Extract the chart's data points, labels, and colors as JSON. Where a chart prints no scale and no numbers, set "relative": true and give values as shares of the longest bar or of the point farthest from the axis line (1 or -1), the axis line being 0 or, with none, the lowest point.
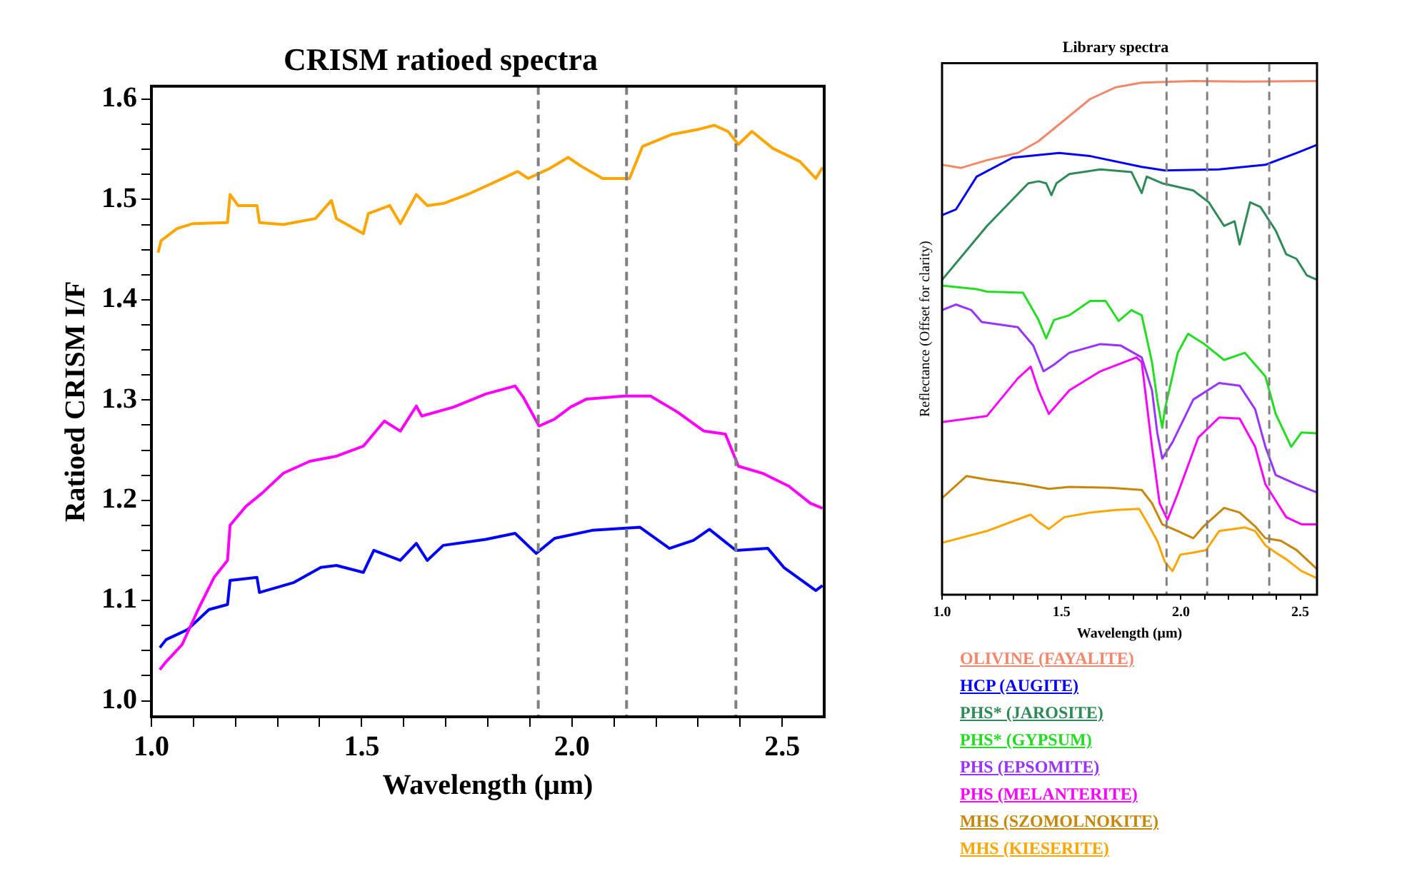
{
  "chart_data": [
    {
      "type": "line",
      "title": "CRISM ratioed spectra",
      "xlabel": "Wavelength (μm)",
      "ylabel": "Ratioed CRISM I/F",
      "xlim": [
        1.0,
        2.6
      ],
      "ylim": [
        0.984,
        1.613
      ],
      "xticks": [
        {
          "value": 1.0,
          "label": "1.0"
        },
        {
          "value": 1.1,
          "label": null
        },
        {
          "value": 1.2,
          "label": null
        },
        {
          "value": 1.3,
          "label": null
        },
        {
          "value": 1.4,
          "label": null
        },
        {
          "value": 1.5,
          "label": "1.5"
        },
        {
          "value": 1.6,
          "label": null
        },
        {
          "value": 1.7,
          "label": null
        },
        {
          "value": 1.8,
          "label": null
        },
        {
          "value": 1.9,
          "label": null
        },
        {
          "value": 2.0,
          "label": "2.0"
        },
        {
          "value": 2.1,
          "label": null
        },
        {
          "value": 2.2,
          "label": null
        },
        {
          "value": 2.3,
          "label": null
        },
        {
          "value": 2.4,
          "label": null
        },
        {
          "value": 2.5,
          "label": "2.5"
        }
      ],
      "yticks": [
        {
          "value": 1.0,
          "label": "1.0"
        },
        {
          "value": 1.025,
          "label": null
        },
        {
          "value": 1.05,
          "label": null
        },
        {
          "value": 1.075,
          "label": null
        },
        {
          "value": 1.1,
          "label": "1.1"
        },
        {
          "value": 1.125,
          "label": null
        },
        {
          "value": 1.15,
          "label": null
        },
        {
          "value": 1.175,
          "label": null
        },
        {
          "value": 1.2,
          "label": "1.2"
        },
        {
          "value": 1.225,
          "label": null
        },
        {
          "value": 1.25,
          "label": null
        },
        {
          "value": 1.275,
          "label": null
        },
        {
          "value": 1.3,
          "label": "1.3"
        },
        {
          "value": 1.325,
          "label": null
        },
        {
          "value": 1.35,
          "label": null
        },
        {
          "value": 1.375,
          "label": null
        },
        {
          "value": 1.4,
          "label": "1.4"
        },
        {
          "value": 1.425,
          "label": null
        },
        {
          "value": 1.45,
          "label": null
        },
        {
          "value": 1.475,
          "label": null
        },
        {
          "value": 1.5,
          "label": "1.5"
        },
        {
          "value": 1.525,
          "label": null
        },
        {
          "value": 1.55,
          "label": null
        },
        {
          "value": 1.575,
          "label": null
        },
        {
          "value": 1.6,
          "label": "1.6"
        }
      ],
      "ref_lines": [
        {
          "axis": "x",
          "value": 1.92,
          "label": null,
          "color": "#808080",
          "line_style": "dashed"
        },
        {
          "axis": "x",
          "value": 2.13,
          "label": null,
          "color": "#808080",
          "line_style": "dashed"
        },
        {
          "axis": "x",
          "value": 2.39,
          "label": null,
          "color": "#808080",
          "line_style": "dashed"
        }
      ],
      "marker": "none",
      "legend": false,
      "series": [
        {
          "color": "#ffa500",
          "x": [
            1.016,
            1.023,
            1.061,
            1.099,
            1.181,
            1.187,
            1.206,
            1.251,
            1.257,
            1.314,
            1.39,
            1.428,
            1.44,
            1.504,
            1.516,
            1.567,
            1.592,
            1.63,
            1.656,
            1.694,
            1.757,
            1.82,
            1.871,
            1.896,
            1.947,
            1.991,
            2.023,
            2.073,
            2.137,
            2.168,
            2.238,
            2.301,
            2.339,
            2.371,
            2.396,
            2.428,
            2.478,
            2.542,
            2.58,
            2.596
          ],
          "values": [
            1.447,
            1.459,
            1.471,
            1.476,
            1.477,
            1.505,
            1.494,
            1.494,
            1.477,
            1.475,
            1.481,
            1.499,
            1.481,
            1.466,
            1.486,
            1.494,
            1.476,
            1.505,
            1.494,
            1.496,
            1.506,
            1.518,
            1.528,
            1.521,
            1.531,
            1.542,
            1.533,
            1.521,
            1.521,
            1.553,
            1.565,
            1.57,
            1.574,
            1.568,
            1.555,
            1.568,
            1.551,
            1.538,
            1.521,
            1.532
          ]
        },
        {
          "color": "#ff00ff",
          "x": [
            1.02,
            1.035,
            1.073,
            1.111,
            1.149,
            1.181,
            1.187,
            1.225,
            1.263,
            1.314,
            1.377,
            1.44,
            1.504,
            1.554,
            1.592,
            1.63,
            1.643,
            1.719,
            1.795,
            1.865,
            1.884,
            1.922,
            1.959,
            1.997,
            2.035,
            2.124,
            2.187,
            2.251,
            2.314,
            2.365,
            2.396,
            2.453,
            2.516,
            2.567,
            2.596
          ],
          "values": [
            1.031,
            1.039,
            1.056,
            1.091,
            1.123,
            1.14,
            1.175,
            1.194,
            1.207,
            1.227,
            1.239,
            1.244,
            1.254,
            1.279,
            1.269,
            1.294,
            1.284,
            1.293,
            1.306,
            1.314,
            1.303,
            1.274,
            1.281,
            1.293,
            1.301,
            1.304,
            1.304,
            1.288,
            1.269,
            1.266,
            1.234,
            1.227,
            1.214,
            1.197,
            1.192
          ]
        },
        {
          "color": "#0000ff",
          "x": [
            1.02,
            1.035,
            1.086,
            1.137,
            1.181,
            1.187,
            1.251,
            1.257,
            1.339,
            1.403,
            1.44,
            1.504,
            1.529,
            1.592,
            1.63,
            1.656,
            1.694,
            1.795,
            1.865,
            1.915,
            1.959,
            2.048,
            2.162,
            2.232,
            2.289,
            2.327,
            2.39,
            2.466,
            2.504,
            2.58,
            2.596
          ],
          "values": [
            1.053,
            1.061,
            1.071,
            1.091,
            1.096,
            1.12,
            1.123,
            1.108,
            1.118,
            1.133,
            1.135,
            1.128,
            1.15,
            1.14,
            1.157,
            1.14,
            1.155,
            1.161,
            1.167,
            1.147,
            1.162,
            1.17,
            1.173,
            1.152,
            1.16,
            1.171,
            1.15,
            1.152,
            1.133,
            1.11,
            1.115
          ]
        }
      ]
    },
    {
      "type": "line",
      "title": "Library spectra",
      "xlabel": "Wavelength (μm)",
      "ylabel": "Reflectance (Offset for clarity)",
      "relative": true,
      "tick_labels": "x",
      "xlim": [
        1.0,
        2.57
      ],
      "xticks": [
        {
          "value": 1.0,
          "label": "1.0"
        },
        {
          "value": 1.1,
          "label": null
        },
        {
          "value": 1.2,
          "label": null
        },
        {
          "value": 1.3,
          "label": null
        },
        {
          "value": 1.4,
          "label": null
        },
        {
          "value": 1.5,
          "label": "1.5"
        },
        {
          "value": 1.6,
          "label": null
        },
        {
          "value": 1.7,
          "label": null
        },
        {
          "value": 1.8,
          "label": null
        },
        {
          "value": 1.9,
          "label": null
        },
        {
          "value": 2.0,
          "label": "2.0"
        },
        {
          "value": 2.1,
          "label": null
        },
        {
          "value": 2.2,
          "label": null
        },
        {
          "value": 2.3,
          "label": null
        },
        {
          "value": 2.4,
          "label": null
        },
        {
          "value": 2.5,
          "label": "2.5"
        }
      ],
      "ref_lines": [
        {
          "axis": "x",
          "value": 1.94,
          "label": null,
          "color": "#808080",
          "line_style": "dashed"
        },
        {
          "axis": "x",
          "value": 2.11,
          "label": null,
          "color": "#808080",
          "line_style": "dashed"
        },
        {
          "axis": "x",
          "value": 2.37,
          "label": null,
          "color": "#808080",
          "line_style": "dashed"
        }
      ],
      "marker": "none",
      "legend": "bottom",
      "series": [
        {
          "name": "OLIVINE (FAYALITE)",
          "color": "#f4876a",
          "x": [
            1.0,
            1.08,
            1.188,
            1.317,
            1.404,
            1.512,
            1.62,
            1.728,
            1.836,
            2.052,
            2.268,
            2.57
          ],
          "values": [
            0.837,
            0.831,
            0.846,
            0.86,
            0.883,
            0.924,
            0.965,
            0.988,
            0.997,
            1,
            0.999,
            1
          ]
        },
        {
          "name": "HCP (AUGITE)",
          "color": "#0000ff",
          "x": [
            1.0,
            1.058,
            1.145,
            1.296,
            1.49,
            1.62,
            1.836,
            1.933,
            2.16,
            2.354,
            2.484,
            2.57
          ],
          "values": [
            0.739,
            0.75,
            0.814,
            0.851,
            0.86,
            0.854,
            0.833,
            0.826,
            0.828,
            0.837,
            0.86,
            0.876
          ]
        },
        {
          "name": "PHS* (JAROSITE)",
          "color": "#2e8b57",
          "x": [
            1.0,
            1.188,
            1.361,
            1.404,
            1.436,
            1.458,
            1.479,
            1.533,
            1.663,
            1.793,
            1.836,
            1.857,
            1.922,
            2.052,
            2.117,
            2.181,
            2.225,
            2.246,
            2.29,
            2.333,
            2.397,
            2.441,
            2.484,
            2.527,
            2.57
          ],
          "values": [
            0.613,
            0.718,
            0.801,
            0.805,
            0.801,
            0.778,
            0.801,
            0.819,
            0.828,
            0.823,
            0.782,
            0.814,
            0.801,
            0.787,
            0.764,
            0.718,
            0.727,
            0.682,
            0.764,
            0.755,
            0.709,
            0.663,
            0.654,
            0.622,
            0.613
          ]
        },
        {
          "name": "PHS* (GYPSUM)",
          "color": "#22dd22",
          "x": [
            1.0,
            1.145,
            1.188,
            1.339,
            1.404,
            1.436,
            1.469,
            1.533,
            1.62,
            1.685,
            1.739,
            1.793,
            1.836,
            1.879,
            1.901,
            1.922,
            1.933,
            1.987,
            2.03,
            2.095,
            2.181,
            2.268,
            2.354,
            2.397,
            2.462,
            2.505,
            2.57
          ],
          "values": [
            0.602,
            0.595,
            0.59,
            0.588,
            0.535,
            0.499,
            0.535,
            0.544,
            0.572,
            0.572,
            0.533,
            0.554,
            0.544,
            0.453,
            0.38,
            0.325,
            0.361,
            0.471,
            0.508,
            0.489,
            0.457,
            0.471,
            0.425,
            0.352,
            0.288,
            0.316,
            0.314
          ]
        },
        {
          "name": "PHS (EPSOMITE)",
          "color": "#9933ff",
          "x": [
            1.0,
            1.058,
            1.123,
            1.166,
            1.317,
            1.382,
            1.425,
            1.469,
            1.533,
            1.663,
            1.749,
            1.836,
            1.879,
            1.901,
            1.922,
            1.965,
            2.052,
            2.16,
            2.246,
            2.311,
            2.354,
            2.397,
            2.484,
            2.57
          ],
          "values": [
            0.554,
            0.565,
            0.554,
            0.531,
            0.521,
            0.485,
            0.435,
            0.448,
            0.471,
            0.488,
            0.485,
            0.462,
            0.398,
            0.316,
            0.265,
            0.297,
            0.38,
            0.412,
            0.407,
            0.361,
            0.288,
            0.233,
            0.215,
            0.199
          ]
        },
        {
          "name": "PHS (MELANTERITE)",
          "color": "#ff00ff",
          "x": [
            1.0,
            1.188,
            1.317,
            1.371,
            1.404,
            1.447,
            1.533,
            1.663,
            1.814,
            1.836,
            1.879,
            1.911,
            1.944,
            1.987,
            2.073,
            2.16,
            2.246,
            2.311,
            2.354,
            2.441,
            2.505,
            2.57
          ],
          "values": [
            0.336,
            0.348,
            0.421,
            0.444,
            0.398,
            0.352,
            0.398,
            0.435,
            0.462,
            0.453,
            0.288,
            0.178,
            0.146,
            0.197,
            0.306,
            0.345,
            0.343,
            0.288,
            0.215,
            0.151,
            0.137,
            0.137
          ]
        },
        {
          "name": "MHS (SZOMOLNOKITE)",
          "color": "#c8860a",
          "x": [
            1.0,
            1.102,
            1.188,
            1.339,
            1.404,
            1.447,
            1.533,
            1.706,
            1.836,
            1.879,
            1.922,
            1.987,
            2.052,
            2.095,
            2.181,
            2.246,
            2.311,
            2.354,
            2.419,
            2.484,
            2.57
          ],
          "values": [
            0.188,
            0.231,
            0.224,
            0.215,
            0.21,
            0.206,
            0.21,
            0.208,
            0.204,
            0.178,
            0.137,
            0.124,
            0.11,
            0.133,
            0.169,
            0.16,
            0.133,
            0.11,
            0.105,
            0.087,
            0.05
          ]
        },
        {
          "name": "MHS (KIESERITE)",
          "color": "#ffa500",
          "x": [
            1.0,
            1.188,
            1.371,
            1.404,
            1.447,
            1.512,
            1.62,
            1.728,
            1.825,
            1.857,
            1.901,
            1.933,
            1.965,
            1.998,
            2.052,
            2.106,
            2.16,
            2.268,
            2.311,
            2.354,
            2.397,
            2.441,
            2.505,
            2.57
          ],
          "values": [
            0.101,
            0.124,
            0.156,
            0.142,
            0.128,
            0.151,
            0.16,
            0.165,
            0.167,
            0.142,
            0.105,
            0.064,
            0.046,
            0.078,
            0.082,
            0.087,
            0.124,
            0.131,
            0.124,
            0.096,
            0.082,
            0.069,
            0.046,
            0.032
          ]
        }
      ]
    }
  ]
}
